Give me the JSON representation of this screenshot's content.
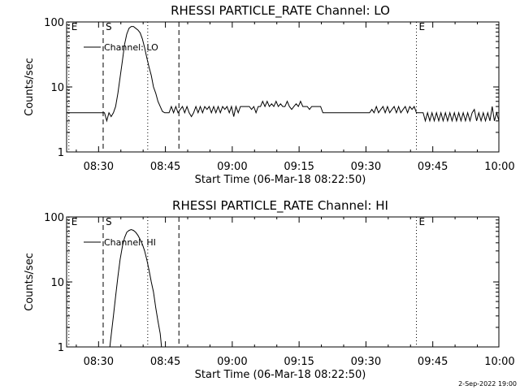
{
  "footer": {
    "date_stamp": "2-Sep-2022 19:00"
  },
  "colors": {
    "foreground": "#000000",
    "background": "#ffffff"
  },
  "chart_data": [
    {
      "type": "line",
      "title": "RHESSI PARTICLE_RATE Channel: LO",
      "xlabel": "Start Time (06-Mar-18 08:22:50)",
      "ylabel": "Counts/sec",
      "x_unit": "minutes after 08:22:50",
      "xlim": [
        0,
        97
      ],
      "ylim": [
        1,
        100
      ],
      "yscale": "log",
      "x_ticks": [
        {
          "x": 7.17,
          "label": "08:30"
        },
        {
          "x": 22.17,
          "label": "08:45"
        },
        {
          "x": 37.17,
          "label": "09:00"
        },
        {
          "x": 52.17,
          "label": "09:15"
        },
        {
          "x": 67.17,
          "label": "09:30"
        },
        {
          "x": 82.17,
          "label": "09:45"
        },
        {
          "x": 97.17,
          "label": "10:00"
        }
      ],
      "y_ticks": [
        {
          "y": 1,
          "label": "1"
        },
        {
          "y": 10,
          "label": "10"
        },
        {
          "y": 100,
          "label": "100"
        }
      ],
      "markers": [
        {
          "x": 0.5,
          "label": "E",
          "style": "dotted"
        },
        {
          "x": 8.2,
          "label": "S",
          "style": "dashed"
        },
        {
          "x": 18.2,
          "label": "",
          "style": "dotted"
        },
        {
          "x": 25.2,
          "label": "",
          "style": "dashed"
        },
        {
          "x": 78.5,
          "label": "E",
          "style": "dotted"
        },
        {
          "x": 97.0,
          "label": "",
          "style": "dotted"
        }
      ],
      "legend": {
        "position": "top-left",
        "label": "Channel: LO"
      },
      "series": [
        {
          "name": "Channel: LO",
          "points": [
            [
              0,
              4
            ],
            [
              8.5,
              4
            ],
            [
              9,
              3
            ],
            [
              9.5,
              4
            ],
            [
              10,
              3.5
            ],
            [
              10.5,
              4
            ],
            [
              11,
              5
            ],
            [
              11.5,
              8
            ],
            [
              12,
              14
            ],
            [
              12.5,
              25
            ],
            [
              13,
              45
            ],
            [
              13.5,
              65
            ],
            [
              14,
              80
            ],
            [
              14.5,
              85
            ],
            [
              15,
              85
            ],
            [
              15.5,
              80
            ],
            [
              16,
              75
            ],
            [
              16.5,
              68
            ],
            [
              17,
              55
            ],
            [
              17.5,
              40
            ],
            [
              18,
              28
            ],
            [
              18.5,
              20
            ],
            [
              19,
              15
            ],
            [
              19.5,
              10
            ],
            [
              20,
              8
            ],
            [
              20.5,
              6
            ],
            [
              21,
              5
            ],
            [
              21.5,
              4.2
            ],
            [
              22,
              4
            ],
            [
              23,
              4
            ],
            [
              23.5,
              5
            ],
            [
              24,
              4
            ],
            [
              24.5,
              5
            ],
            [
              25,
              4
            ],
            [
              25.5,
              4.5
            ],
            [
              26,
              5
            ],
            [
              26.5,
              4
            ],
            [
              27,
              5
            ],
            [
              27.5,
              4
            ],
            [
              28,
              3.5
            ],
            [
              28.5,
              4
            ],
            [
              29,
              5
            ],
            [
              29.5,
              4
            ],
            [
              30,
              5
            ],
            [
              30.5,
              4
            ],
            [
              31,
              5
            ],
            [
              31.5,
              4.5
            ],
            [
              32,
              5
            ],
            [
              32.5,
              4
            ],
            [
              33,
              5
            ],
            [
              33.5,
              4
            ],
            [
              34,
              5
            ],
            [
              34.5,
              4
            ],
            [
              35,
              5
            ],
            [
              35.5,
              4.5
            ],
            [
              36,
              5
            ],
            [
              36.5,
              4
            ],
            [
              37,
              5
            ],
            [
              37.5,
              3.5
            ],
            [
              38,
              5
            ],
            [
              38.5,
              4
            ],
            [
              39,
              5
            ],
            [
              41,
              5
            ],
            [
              41.5,
              4.5
            ],
            [
              42,
              5
            ],
            [
              42.5,
              4
            ],
            [
              43,
              5
            ],
            [
              43.5,
              5
            ],
            [
              44,
              6
            ],
            [
              44.5,
              5
            ],
            [
              45,
              6
            ],
            [
              45.5,
              5
            ],
            [
              46,
              5.5
            ],
            [
              46.5,
              5
            ],
            [
              47,
              6
            ],
            [
              47.5,
              5
            ],
            [
              48,
              5.5
            ],
            [
              48.5,
              5
            ],
            [
              49,
              5
            ],
            [
              49.5,
              6
            ],
            [
              50,
              5
            ],
            [
              50.5,
              4.5
            ],
            [
              51,
              5
            ],
            [
              51.5,
              5.5
            ],
            [
              52,
              5
            ],
            [
              52.5,
              6
            ],
            [
              53,
              5
            ],
            [
              54,
              5
            ],
            [
              54.5,
              4.5
            ],
            [
              55,
              5
            ],
            [
              56,
              5
            ],
            [
              57,
              5
            ],
            [
              57.5,
              4
            ],
            [
              68,
              4
            ],
            [
              68.5,
              4.5
            ],
            [
              69,
              4
            ],
            [
              69.5,
              5
            ],
            [
              70,
              4
            ],
            [
              70.5,
              4.5
            ],
            [
              71,
              5
            ],
            [
              71.5,
              4
            ],
            [
              72,
              5
            ],
            [
              72.5,
              4
            ],
            [
              73,
              4.5
            ],
            [
              73.5,
              5
            ],
            [
              74,
              4
            ],
            [
              74.5,
              5
            ],
            [
              75,
              4
            ],
            [
              75.5,
              4.5
            ],
            [
              76,
              5
            ],
            [
              76.5,
              4
            ],
            [
              77,
              5
            ],
            [
              77.5,
              4.5
            ],
            [
              78,
              5
            ],
            [
              78.5,
              4
            ],
            [
              79,
              4
            ],
            [
              80,
              4
            ],
            [
              80.5,
              3
            ],
            [
              81,
              4
            ],
            [
              81.5,
              3
            ],
            [
              82,
              4
            ],
            [
              82.5,
              3
            ],
            [
              83,
              4
            ],
            [
              83.5,
              3
            ],
            [
              84,
              4
            ],
            [
              84.5,
              3
            ],
            [
              85,
              4
            ],
            [
              85.5,
              3
            ],
            [
              86,
              4
            ],
            [
              86.5,
              3
            ],
            [
              87,
              4
            ],
            [
              87.5,
              3
            ],
            [
              88,
              4
            ],
            [
              88.5,
              3
            ],
            [
              89,
              4
            ],
            [
              89.5,
              3
            ],
            [
              90,
              4
            ],
            [
              90.5,
              3
            ],
            [
              91,
              4
            ],
            [
              91.5,
              4.5
            ],
            [
              92,
              3
            ],
            [
              92.5,
              4
            ],
            [
              93,
              3
            ],
            [
              93.5,
              4
            ],
            [
              94,
              3
            ],
            [
              94.5,
              4
            ],
            [
              95,
              3
            ],
            [
              95.5,
              5
            ],
            [
              96,
              3
            ],
            [
              96.5,
              4
            ],
            [
              97,
              3
            ]
          ]
        }
      ]
    },
    {
      "type": "line",
      "title": "RHESSI PARTICLE_RATE Channel: HI",
      "xlabel": "Start Time (06-Mar-18 08:22:50)",
      "ylabel": "Counts/sec",
      "x_unit": "minutes after 08:22:50",
      "xlim": [
        0,
        97
      ],
      "ylim": [
        1,
        100
      ],
      "yscale": "log",
      "x_ticks": [
        {
          "x": 7.17,
          "label": "08:30"
        },
        {
          "x": 22.17,
          "label": "08:45"
        },
        {
          "x": 37.17,
          "label": "09:00"
        },
        {
          "x": 52.17,
          "label": "09:15"
        },
        {
          "x": 67.17,
          "label": "09:30"
        },
        {
          "x": 82.17,
          "label": "09:45"
        },
        {
          "x": 97.17,
          "label": "10:00"
        }
      ],
      "y_ticks": [
        {
          "y": 1,
          "label": "1"
        },
        {
          "y": 10,
          "label": "10"
        },
        {
          "y": 100,
          "label": "100"
        }
      ],
      "markers": [
        {
          "x": 0.5,
          "label": "E",
          "style": "dotted"
        },
        {
          "x": 8.2,
          "label": "S",
          "style": "dashed"
        },
        {
          "x": 18.2,
          "label": "",
          "style": "dotted"
        },
        {
          "x": 25.2,
          "label": "",
          "style": "dashed"
        },
        {
          "x": 78.5,
          "label": "E",
          "style": "dotted"
        },
        {
          "x": 97.0,
          "label": "",
          "style": "dotted"
        }
      ],
      "legend": {
        "position": "top-left",
        "label": "Channel: HI"
      },
      "series": [
        {
          "name": "Channel: HI",
          "points": [
            [
              9.7,
              1
            ],
            [
              10,
              1.5
            ],
            [
              10.5,
              3
            ],
            [
              11,
              6
            ],
            [
              11.5,
              12
            ],
            [
              12,
              22
            ],
            [
              12.5,
              35
            ],
            [
              13,
              48
            ],
            [
              13.5,
              58
            ],
            [
              14,
              62
            ],
            [
              14.5,
              64
            ],
            [
              15,
              62
            ],
            [
              15.5,
              58
            ],
            [
              16,
              52
            ],
            [
              16.5,
              45
            ],
            [
              17,
              38
            ],
            [
              17.5,
              30
            ],
            [
              18,
              22
            ],
            [
              18.5,
              15
            ],
            [
              19,
              10
            ],
            [
              19.5,
              7
            ],
            [
              20,
              4
            ],
            [
              20.5,
              2.5
            ],
            [
              21,
              1.6
            ],
            [
              21.3,
              1
            ]
          ]
        }
      ]
    }
  ]
}
